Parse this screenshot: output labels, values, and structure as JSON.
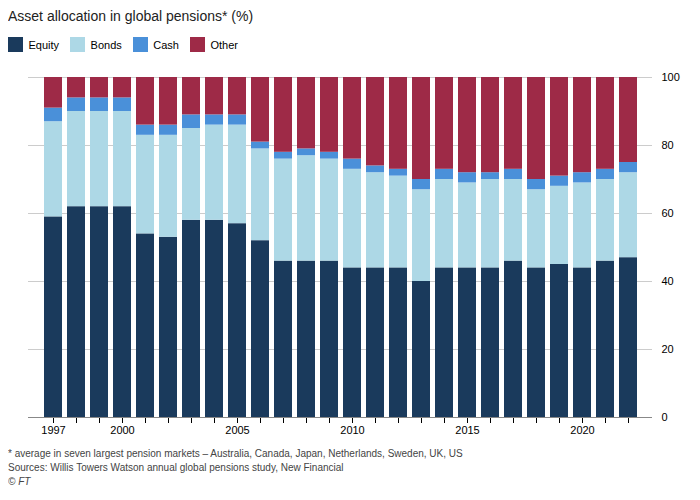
{
  "chart_data": {
    "type": "bar",
    "stacked": true,
    "title": "Asset allocation in global pensions* (%)",
    "categories": [
      "1997",
      null,
      null,
      "2000",
      null,
      null,
      null,
      null,
      "2005",
      null,
      null,
      null,
      null,
      "2010",
      null,
      null,
      null,
      null,
      "2015",
      null,
      null,
      null,
      null,
      "2020",
      null,
      null
    ],
    "series": [
      {
        "name": "Equity",
        "color": "#1a3a5c",
        "values": [
          59,
          62,
          62,
          62,
          54,
          53,
          58,
          58,
          57,
          52,
          46,
          46,
          46,
          44,
          44,
          44,
          40,
          44,
          44,
          44,
          46,
          44,
          45,
          44,
          46,
          47
        ]
      },
      {
        "name": "Bonds",
        "color": "#add8e6",
        "values": [
          28,
          28,
          28,
          28,
          29,
          30,
          27,
          28,
          29,
          27,
          30,
          31,
          30,
          29,
          28,
          27,
          27,
          26,
          25,
          26,
          24,
          23,
          23,
          25,
          24,
          25
        ]
      },
      {
        "name": "Cash",
        "color": "#4a90d9",
        "values": [
          4,
          4,
          4,
          4,
          3,
          3,
          4,
          3,
          3,
          2,
          2,
          2,
          2,
          3,
          2,
          2,
          3,
          3,
          3,
          2,
          3,
          3,
          3,
          3,
          3,
          3
        ]
      },
      {
        "name": "Other",
        "color": "#9e2a47",
        "values": [
          9,
          6,
          6,
          6,
          14,
          14,
          11,
          11,
          11,
          19,
          22,
          21,
          22,
          24,
          26,
          27,
          30,
          27,
          28,
          28,
          27,
          30,
          29,
          28,
          27,
          25
        ]
      }
    ],
    "ylim": [
      0,
      100
    ],
    "yticks": [
      0,
      20,
      40,
      60,
      80,
      100
    ],
    "grid": true,
    "legend": "upper left",
    "annotations": [
      "* average in seven largest pension markets – Australia, Canada, Japan, Netherlands, Sweden, UK, US",
      "Sources: Willis Towers Watson annual global pensions study, New Financial",
      "© FT"
    ]
  }
}
